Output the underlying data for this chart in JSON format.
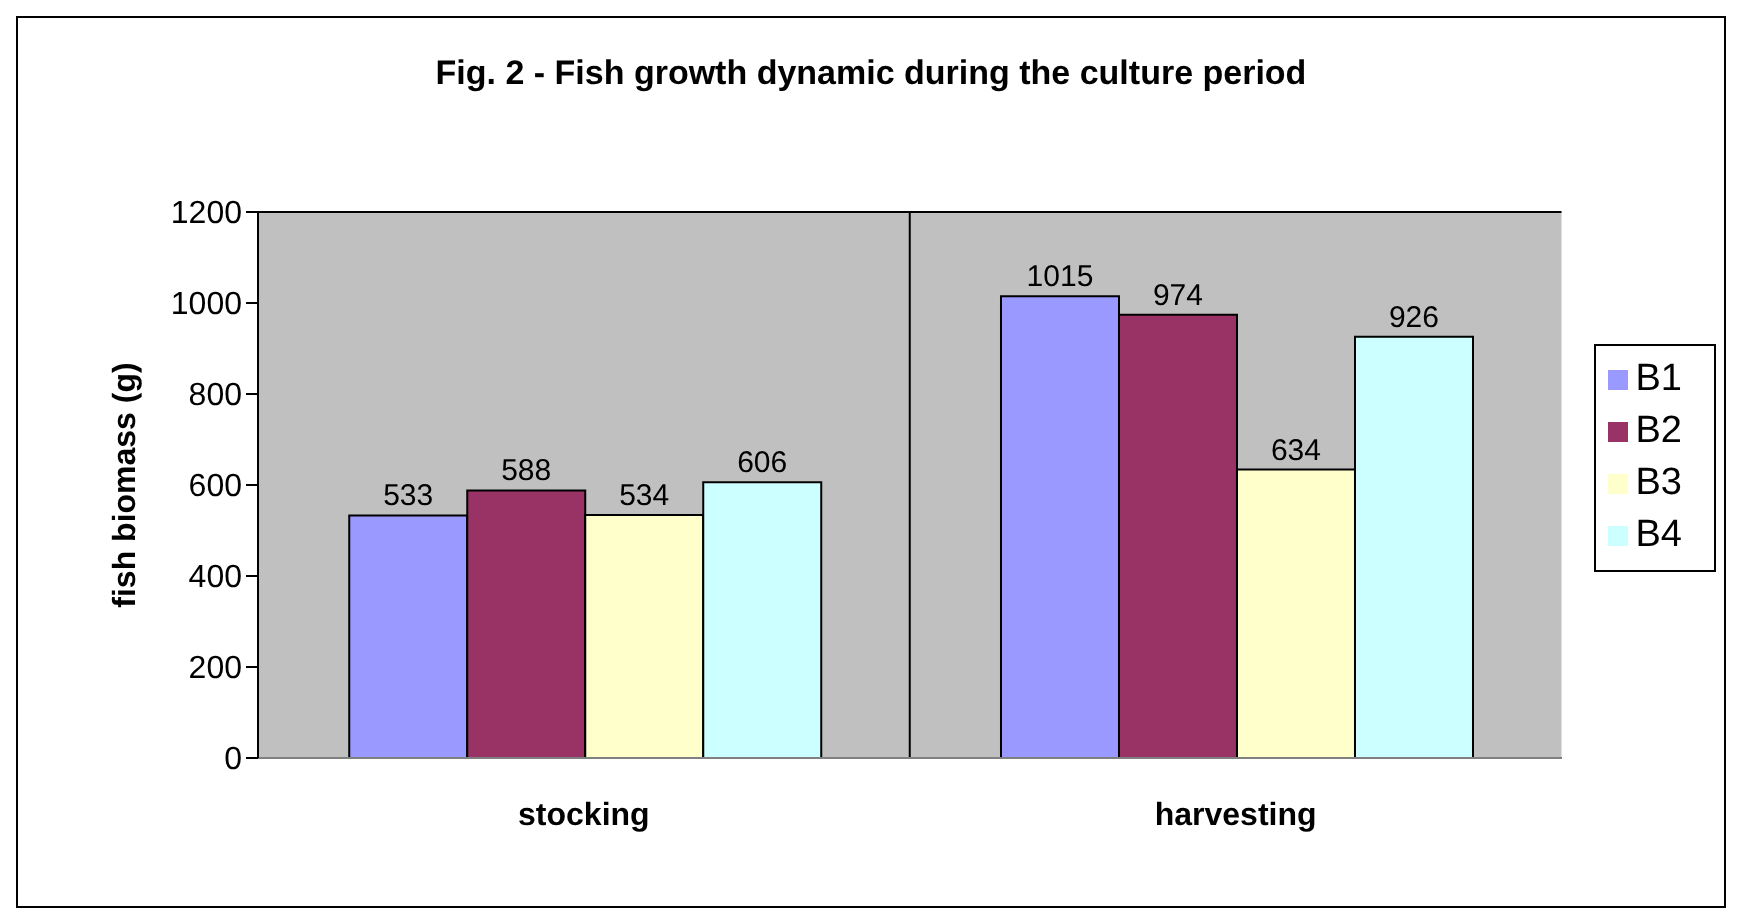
{
  "chart_data": {
    "type": "bar",
    "title": "Fig. 2 - Fish growth dynamic during the culture period",
    "ylabel": "fish biomass (g)",
    "categories": [
      "stocking",
      "harvesting"
    ],
    "series": [
      {
        "name": "B1",
        "color": "#9999ff",
        "values": [
          533,
          1015
        ]
      },
      {
        "name": "B2",
        "color": "#993366",
        "values": [
          588,
          974
        ]
      },
      {
        "name": "B3",
        "color": "#ffffcc",
        "values": [
          534,
          634
        ]
      },
      {
        "name": "B4",
        "color": "#ccffff",
        "values": [
          606,
          926
        ]
      }
    ],
    "ylim": [
      0,
      1200
    ],
    "yticks": [
      0,
      200,
      400,
      600,
      800,
      1000,
      1200
    ],
    "grid": true,
    "legend": "right",
    "data_labels": true
  }
}
